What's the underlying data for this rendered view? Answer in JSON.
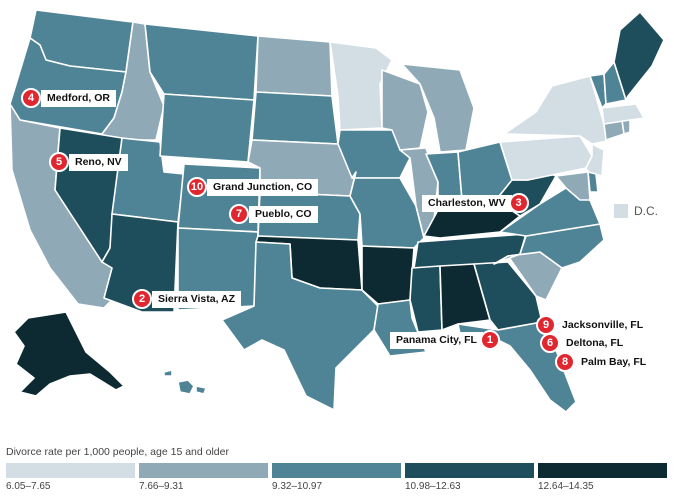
{
  "colors": {
    "c1": "#d3dde4",
    "c2": "#8fa9b6",
    "c3": "#4f8496",
    "c4": "#1e4e5c",
    "c5": "#0d2a33",
    "marker": "#e0262f"
  },
  "legend": {
    "title": "Divorce rate per 1,000 people, age 15 and older",
    "bins": [
      {
        "range": "6.05–7.65",
        "class": "c1"
      },
      {
        "range": "7.66–9.31",
        "class": "c2"
      },
      {
        "range": "9.32–10.97",
        "class": "c3"
      },
      {
        "range": "10.98–12.63",
        "class": "c4"
      },
      {
        "range": "12.64–14.35",
        "class": "c5"
      }
    ]
  },
  "dc": {
    "label": "D.C.",
    "class": "c1"
  },
  "markers": [
    {
      "rank": "1",
      "city": "Panama City, FL"
    },
    {
      "rank": "2",
      "city": "Sierra Vista, AZ"
    },
    {
      "rank": "3",
      "city": "Charleston, WV"
    },
    {
      "rank": "4",
      "city": "Medford, OR"
    },
    {
      "rank": "5",
      "city": "Reno, NV"
    },
    {
      "rank": "6",
      "city": "Deltona, FL"
    },
    {
      "rank": "7",
      "city": "Pueblo, CO"
    },
    {
      "rank": "8",
      "city": "Palm Bay, FL"
    },
    {
      "rank": "9",
      "city": "Jacksonville, FL"
    },
    {
      "rank": "10",
      "city": "Grand Junction, CO"
    }
  ],
  "states": [
    {
      "id": "WA",
      "class": "c3"
    },
    {
      "id": "OR",
      "class": "c3"
    },
    {
      "id": "CA",
      "class": "c2"
    },
    {
      "id": "ID",
      "class": "c2"
    },
    {
      "id": "NV",
      "class": "c4"
    },
    {
      "id": "UT",
      "class": "c3"
    },
    {
      "id": "AZ",
      "class": "c4"
    },
    {
      "id": "MT",
      "class": "c3"
    },
    {
      "id": "WY",
      "class": "c3"
    },
    {
      "id": "CO",
      "class": "c3"
    },
    {
      "id": "NM",
      "class": "c3"
    },
    {
      "id": "ND",
      "class": "c2"
    },
    {
      "id": "SD",
      "class": "c3"
    },
    {
      "id": "NE",
      "class": "c2"
    },
    {
      "id": "KS",
      "class": "c3"
    },
    {
      "id": "OK",
      "class": "c5"
    },
    {
      "id": "TX",
      "class": "c3"
    },
    {
      "id": "MN",
      "class": "c1"
    },
    {
      "id": "IA",
      "class": "c3"
    },
    {
      "id": "MO",
      "class": "c3"
    },
    {
      "id": "AR",
      "class": "c5"
    },
    {
      "id": "LA",
      "class": "c3"
    },
    {
      "id": "WI",
      "class": "c2"
    },
    {
      "id": "IL",
      "class": "c2"
    },
    {
      "id": "MI",
      "class": "c2"
    },
    {
      "id": "IN",
      "class": "c3"
    },
    {
      "id": "OH",
      "class": "c3"
    },
    {
      "id": "KY",
      "class": "c5"
    },
    {
      "id": "TN",
      "class": "c4"
    },
    {
      "id": "MS",
      "class": "c4"
    },
    {
      "id": "AL",
      "class": "c5"
    },
    {
      "id": "GA",
      "class": "c4"
    },
    {
      "id": "FL",
      "class": "c3"
    },
    {
      "id": "SC",
      "class": "c2"
    },
    {
      "id": "NC",
      "class": "c3"
    },
    {
      "id": "VA",
      "class": "c3"
    },
    {
      "id": "WV",
      "class": "c4"
    },
    {
      "id": "PA",
      "class": "c1"
    },
    {
      "id": "NY",
      "class": "c1"
    },
    {
      "id": "NJ",
      "class": "c1"
    },
    {
      "id": "DE",
      "class": "c3"
    },
    {
      "id": "MD",
      "class": "c2"
    },
    {
      "id": "CT",
      "class": "c2"
    },
    {
      "id": "RI",
      "class": "c2"
    },
    {
      "id": "MA",
      "class": "c1"
    },
    {
      "id": "VT",
      "class": "c3"
    },
    {
      "id": "NH",
      "class": "c3"
    },
    {
      "id": "ME",
      "class": "c4"
    },
    {
      "id": "AK",
      "class": "c5"
    },
    {
      "id": "HI",
      "class": "c3"
    }
  ]
}
